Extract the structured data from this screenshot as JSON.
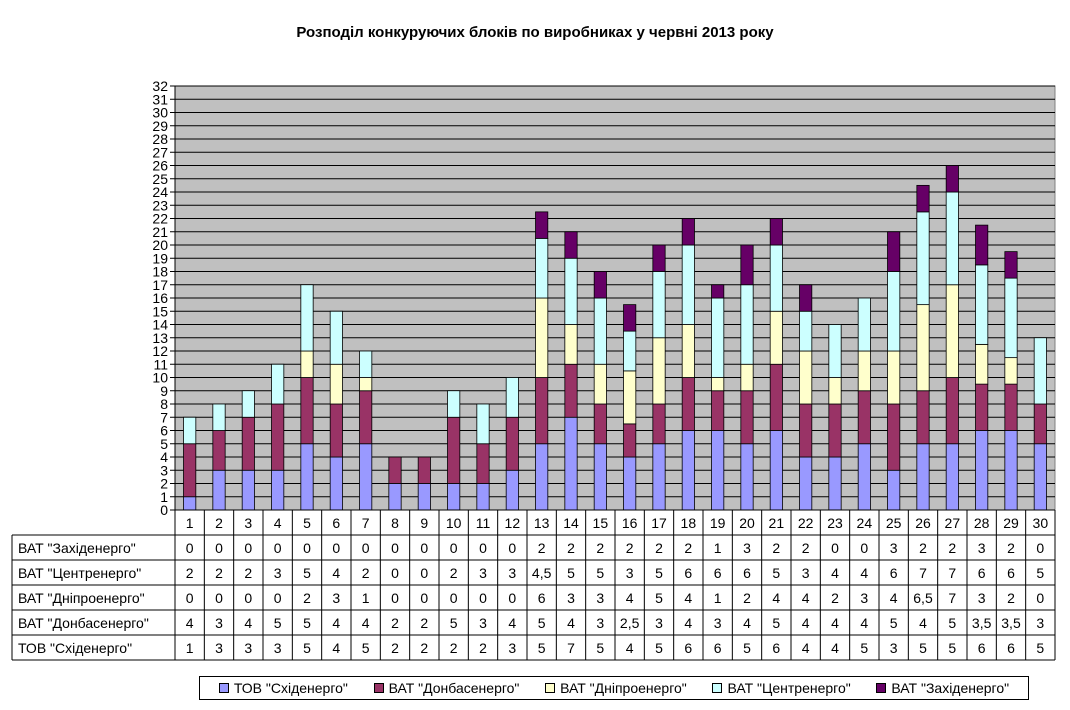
{
  "chart_data": {
    "type": "bar",
    "stacked": true,
    "title": "Розподіл конкуруючих блоків по виробниках у червні 2013 року",
    "xlabel": "",
    "ylabel": "",
    "ylim": [
      0,
      32
    ],
    "yticks": [
      0,
      1,
      2,
      3,
      4,
      5,
      6,
      7,
      8,
      9,
      10,
      11,
      12,
      13,
      14,
      15,
      16,
      17,
      18,
      19,
      20,
      21,
      22,
      23,
      24,
      25,
      26,
      27,
      28,
      29,
      30,
      31,
      32
    ],
    "grid": true,
    "plot_background": "#c0c0c0",
    "legend_position": "bottom",
    "categories": [
      "1",
      "2",
      "3",
      "4",
      "5",
      "6",
      "7",
      "8",
      "9",
      "10",
      "11",
      "12",
      "13",
      "14",
      "15",
      "16",
      "17",
      "18",
      "19",
      "20",
      "21",
      "22",
      "23",
      "24",
      "25",
      "26",
      "27",
      "28",
      "29",
      "30"
    ],
    "series": [
      {
        "name": "ТОВ \"Східенерго\"",
        "color": "#9999ff",
        "values": [
          1,
          3,
          3,
          3,
          5,
          4,
          5,
          2,
          2,
          2,
          2,
          3,
          5,
          7,
          5,
          4,
          5,
          6,
          6,
          5,
          6,
          4,
          4,
          5,
          3,
          5,
          5,
          6,
          6,
          5
        ],
        "labels": [
          "1",
          "3",
          "3",
          "3",
          "5",
          "4",
          "5",
          "2",
          "2",
          "2",
          "2",
          "3",
          "5",
          "7",
          "5",
          "4",
          "5",
          "6",
          "6",
          "5",
          "6",
          "4",
          "4",
          "5",
          "3",
          "5",
          "5",
          "6",
          "6",
          "5"
        ]
      },
      {
        "name": "ВАТ \"Донбасенерго\"",
        "color": "#993366",
        "values": [
          4,
          3,
          4,
          5,
          5,
          4,
          4,
          2,
          2,
          5,
          3,
          4,
          5,
          4,
          3,
          2.5,
          3,
          4,
          3,
          4,
          5,
          4,
          4,
          4,
          5,
          4,
          5,
          3.5,
          3.5,
          3
        ],
        "labels": [
          "4",
          "3",
          "4",
          "5",
          "5",
          "4",
          "4",
          "2",
          "2",
          "5",
          "3",
          "4",
          "5",
          "4",
          "3",
          "2,5",
          "3",
          "4",
          "3",
          "4",
          "5",
          "4",
          "4",
          "4",
          "5",
          "4",
          "5",
          "3,5",
          "3,5",
          "3"
        ]
      },
      {
        "name": "ВАТ \"Дніпроенерго\"",
        "color": "#ffffcc",
        "values": [
          0,
          0,
          0,
          0,
          2,
          3,
          1,
          0,
          0,
          0,
          0,
          0,
          6,
          3,
          3,
          4,
          5,
          4,
          1,
          2,
          4,
          4,
          2,
          3,
          4,
          6.5,
          7,
          3,
          2,
          0
        ],
        "labels": [
          "0",
          "0",
          "0",
          "0",
          "2",
          "3",
          "1",
          "0",
          "0",
          "0",
          "0",
          "0",
          "6",
          "3",
          "3",
          "4",
          "5",
          "4",
          "1",
          "2",
          "4",
          "4",
          "2",
          "3",
          "4",
          "6,5",
          "7",
          "3",
          "2",
          "0"
        ]
      },
      {
        "name": "ВАТ \"Центренерго\"",
        "color": "#ccffff",
        "values": [
          2,
          2,
          2,
          3,
          5,
          4,
          2,
          0,
          0,
          2,
          3,
          3,
          4.5,
          5,
          5,
          3,
          5,
          6,
          6,
          6,
          5,
          3,
          4,
          4,
          6,
          7,
          7,
          6,
          6,
          5
        ],
        "labels": [
          "2",
          "2",
          "2",
          "3",
          "5",
          "4",
          "2",
          "0",
          "0",
          "2",
          "3",
          "3",
          "4,5",
          "5",
          "5",
          "3",
          "5",
          "6",
          "6",
          "6",
          "5",
          "3",
          "4",
          "4",
          "6",
          "7",
          "7",
          "6",
          "6",
          "5"
        ]
      },
      {
        "name": "ВАТ \"Західенерго\"",
        "color": "#660066",
        "values": [
          0,
          0,
          0,
          0,
          0,
          0,
          0,
          0,
          0,
          0,
          0,
          0,
          2,
          2,
          2,
          2,
          2,
          2,
          1,
          3,
          2,
          2,
          0,
          0,
          3,
          2,
          2,
          3,
          2,
          0
        ],
        "labels": [
          "0",
          "0",
          "0",
          "0",
          "0",
          "0",
          "0",
          "0",
          "0",
          "0",
          "0",
          "0",
          "2",
          "2",
          "2",
          "2",
          "2",
          "2",
          "1",
          "3",
          "2",
          "2",
          "0",
          "0",
          "3",
          "2",
          "2",
          "3",
          "2",
          "0"
        ]
      }
    ],
    "table_row_order": [
      4,
      3,
      2,
      1,
      0
    ]
  }
}
